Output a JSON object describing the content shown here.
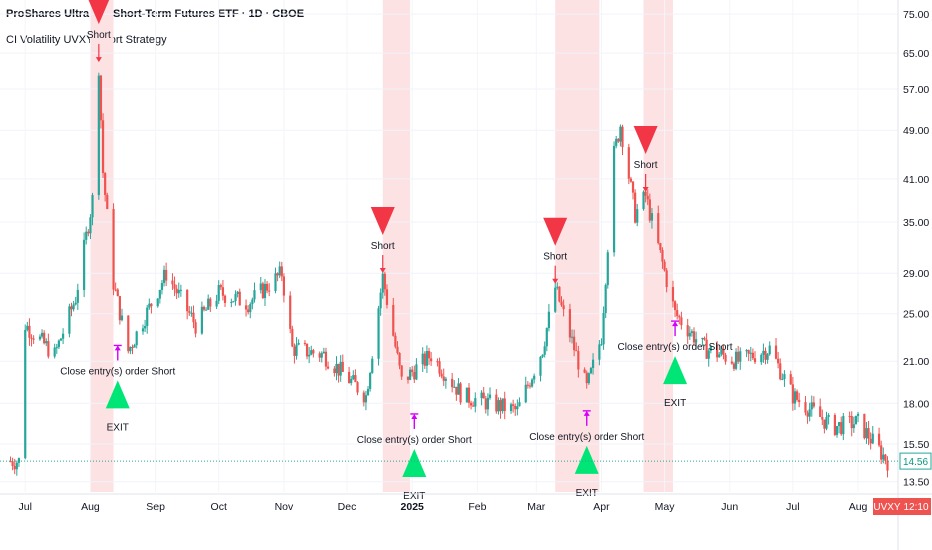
{
  "header": {
    "title": "ProShares Ultra VIX Short-Term Futures ETF · 1D · CBOE",
    "strategy": "CI Volatility UVXY Short Strategy"
  },
  "price_axis": {
    "ticks": [
      "75.00",
      "65.00",
      "57.00",
      "49.00",
      "41.00",
      "35.00",
      "29.00",
      "25.00",
      "21.00",
      "18.00",
      "15.50",
      "13.50"
    ],
    "last_price": "14.56",
    "ticker_badge": "UVXY",
    "time_badge": "12:10"
  },
  "time_axis": {
    "labels": [
      "Jul",
      "Aug",
      "Sep",
      "Oct",
      "Nov",
      "Dec",
      "2025",
      "Feb",
      "Mar",
      "Apr",
      "May",
      "Jun",
      "Jul",
      "Aug"
    ]
  },
  "colors": {
    "up": "#26a69a",
    "down": "#ef5350",
    "short_marker": "#f23645",
    "exit_marker": "#00e676",
    "highlight": "#fde2e4",
    "order_arrow": "#d500f9"
  },
  "chart_data": {
    "type": "candlestick",
    "title": "ProShares Ultra VIX Short-Term Futures ETF · 1D · CBOE",
    "scale": "log",
    "ylim": [
      13.0,
      79.0
    ],
    "x_labels": [
      "Jul",
      "Aug",
      "Sep",
      "Oct",
      "Nov",
      "Dec",
      "2025",
      "Feb",
      "Mar",
      "Apr",
      "May",
      "Jun",
      "Jul",
      "Aug"
    ],
    "highlight_periods": [
      [
        "2024-08-01",
        "2024-08-12"
      ],
      [
        "2024-12-18",
        "2024-12-31"
      ],
      [
        "2025-03-10",
        "2025-03-31"
      ],
      [
        "2025-04-21",
        "2025-05-05"
      ]
    ],
    "signals": [
      {
        "type": "Short",
        "date": "2024-08-05",
        "price": 62.0
      },
      {
        "type": "Close entry(s) order Short",
        "date": "2024-08-14",
        "price": 22.5
      },
      {
        "type": "Short",
        "date": "2024-12-18",
        "price": 28.6
      },
      {
        "type": "Close entry(s) order Short",
        "date": "2025-01-02",
        "price": 17.5
      },
      {
        "type": "Short",
        "date": "2025-03-10",
        "price": 27.5
      },
      {
        "type": "Close entry(s) order Short",
        "date": "2025-03-25",
        "price": 17.7
      },
      {
        "type": "Short",
        "date": "2025-04-22",
        "price": 38.5
      },
      {
        "type": "Close entry(s) order Short",
        "date": "2025-05-06",
        "price": 24.6
      }
    ],
    "signal_labels": [
      "Short",
      "Close entry(s) order Short",
      "EXIT"
    ],
    "last_price": 14.56,
    "price_path": [
      [
        "2024-07-01",
        24.0
      ],
      [
        "2024-07-15",
        21.5
      ],
      [
        "2024-07-25",
        26.5
      ],
      [
        "2024-08-02",
        38.0
      ],
      [
        "2024-08-05",
        62.0
      ],
      [
        "2024-08-07",
        42.0
      ],
      [
        "2024-08-12",
        28.0
      ],
      [
        "2024-08-19",
        21.8
      ],
      [
        "2024-09-06",
        29.0
      ],
      [
        "2024-09-20",
        24.0
      ],
      [
        "2024-10-01",
        27.0
      ],
      [
        "2024-10-15",
        26.0
      ],
      [
        "2024-10-31",
        29.0
      ],
      [
        "2024-11-05",
        22.0
      ],
      [
        "2024-11-20",
        21.5
      ],
      [
        "2024-12-10",
        18.5
      ],
      [
        "2024-12-18",
        28.6
      ],
      [
        "2024-12-27",
        19.5
      ],
      [
        "2025-01-10",
        21.5
      ],
      [
        "2025-01-25",
        18.5
      ],
      [
        "2025-02-20",
        17.5
      ],
      [
        "2025-03-04",
        22.0
      ],
      [
        "2025-03-10",
        27.5
      ],
      [
        "2025-03-25",
        19.0
      ],
      [
        "2025-04-01",
        23.0
      ],
      [
        "2025-04-07",
        45.0
      ],
      [
        "2025-04-10",
        50.0
      ],
      [
        "2025-04-17",
        36.0
      ],
      [
        "2025-04-22",
        38.5
      ],
      [
        "2025-05-06",
        25.0
      ],
      [
        "2025-05-20",
        22.0
      ],
      [
        "2025-06-05",
        21.0
      ],
      [
        "2025-06-20",
        22.0
      ],
      [
        "2025-07-01",
        18.5
      ],
      [
        "2025-07-20",
        16.5
      ],
      [
        "2025-08-01",
        16.8
      ],
      [
        "2025-08-15",
        14.56
      ]
    ]
  }
}
